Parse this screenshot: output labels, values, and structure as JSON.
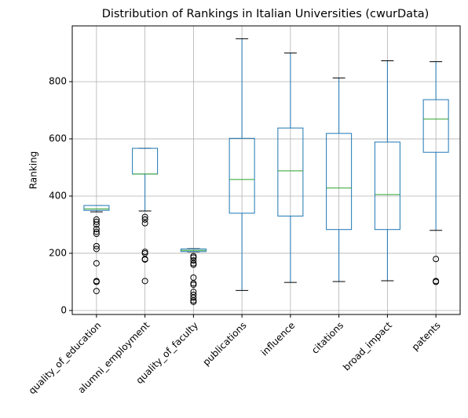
{
  "chart_data": {
    "type": "box",
    "title": "Distribution of Rankings in Italian Universities (cwurData)",
    "y_label": "Ranking",
    "categories": [
      "quality_of_education",
      "alumni_employment",
      "quality_of_faculty",
      "publications",
      "influence",
      "citations",
      "broad_impact",
      "patents"
    ],
    "boxes": [
      {
        "min": 345,
        "q1": 350,
        "median": 355,
        "q3": 367,
        "max": 367,
        "outliers": [
          318,
          310,
          300,
          285,
          275,
          268,
          225,
          215,
          165,
          103,
          100,
          68
        ]
      },
      {
        "min": 348,
        "q1": 477,
        "median": 477,
        "q3": 567,
        "max": 567,
        "outliers": [
          327,
          318,
          305,
          205,
          200,
          180,
          178,
          103
        ]
      },
      {
        "min": 205,
        "q1": 206,
        "median": 210,
        "q3": 215,
        "max": 216,
        "outliers": [
          190,
          185,
          175,
          165,
          160,
          115,
          95,
          90,
          65,
          55,
          45,
          35,
          30
        ]
      },
      {
        "min": 70,
        "q1": 340,
        "median": 458,
        "q3": 602,
        "max": 950,
        "outliers": []
      },
      {
        "min": 98,
        "q1": 330,
        "median": 488,
        "q3": 638,
        "max": 900,
        "outliers": []
      },
      {
        "min": 101,
        "q1": 283,
        "median": 428,
        "q3": 619,
        "max": 813,
        "outliers": []
      },
      {
        "min": 104,
        "q1": 283,
        "median": 405,
        "q3": 589,
        "max": 873,
        "outliers": []
      },
      {
        "min": 280,
        "q1": 553,
        "median": 669,
        "q3": 737,
        "max": 870,
        "outliers": [
          180,
          103,
          100
        ]
      }
    ],
    "box_color": "#1f77b4",
    "median_color": "#2ca02c",
    "ylim": [
      -14,
      995
    ],
    "yticks": [
      0,
      200,
      400,
      600,
      800
    ],
    "grid": true
  }
}
